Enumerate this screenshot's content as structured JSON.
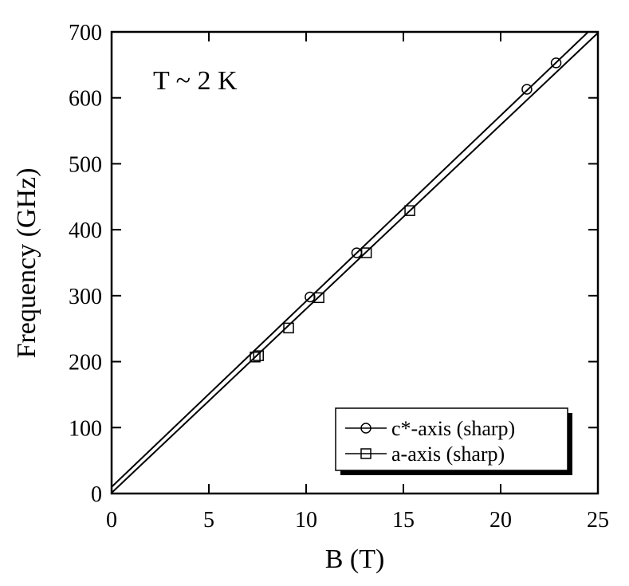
{
  "chart_data": {
    "type": "scatter",
    "xlabel": "B (T)",
    "ylabel": "Frequency (GHz)",
    "annotation": "T ~ 2 K",
    "xlim": [
      0,
      25
    ],
    "xticks": [
      0,
      5,
      10,
      15,
      20,
      25
    ],
    "ylim": [
      0,
      700
    ],
    "yticks": [
      0,
      100,
      200,
      300,
      400,
      500,
      600,
      700
    ],
    "legend": "lower right",
    "series": [
      {
        "name": "c*-axis (sharp)",
        "marker": "circle",
        "color": "#000000",
        "x": [
          10.2,
          12.6,
          21.35,
          22.85
        ],
        "values": [
          298,
          365,
          613,
          653
        ],
        "fit_x": [
          0,
          25
        ],
        "fit_values": [
          10,
          714
        ]
      },
      {
        "name": "a-axis (sharp)",
        "marker": "square",
        "color": "#000000",
        "x": [
          7.38,
          7.55,
          9.1,
          10.66,
          13.1,
          15.33
        ],
        "values": [
          207,
          209,
          251,
          297,
          365,
          429
        ],
        "fit_x": [
          0,
          25
        ],
        "fit_values": [
          1,
          698.5
        ]
      }
    ]
  }
}
